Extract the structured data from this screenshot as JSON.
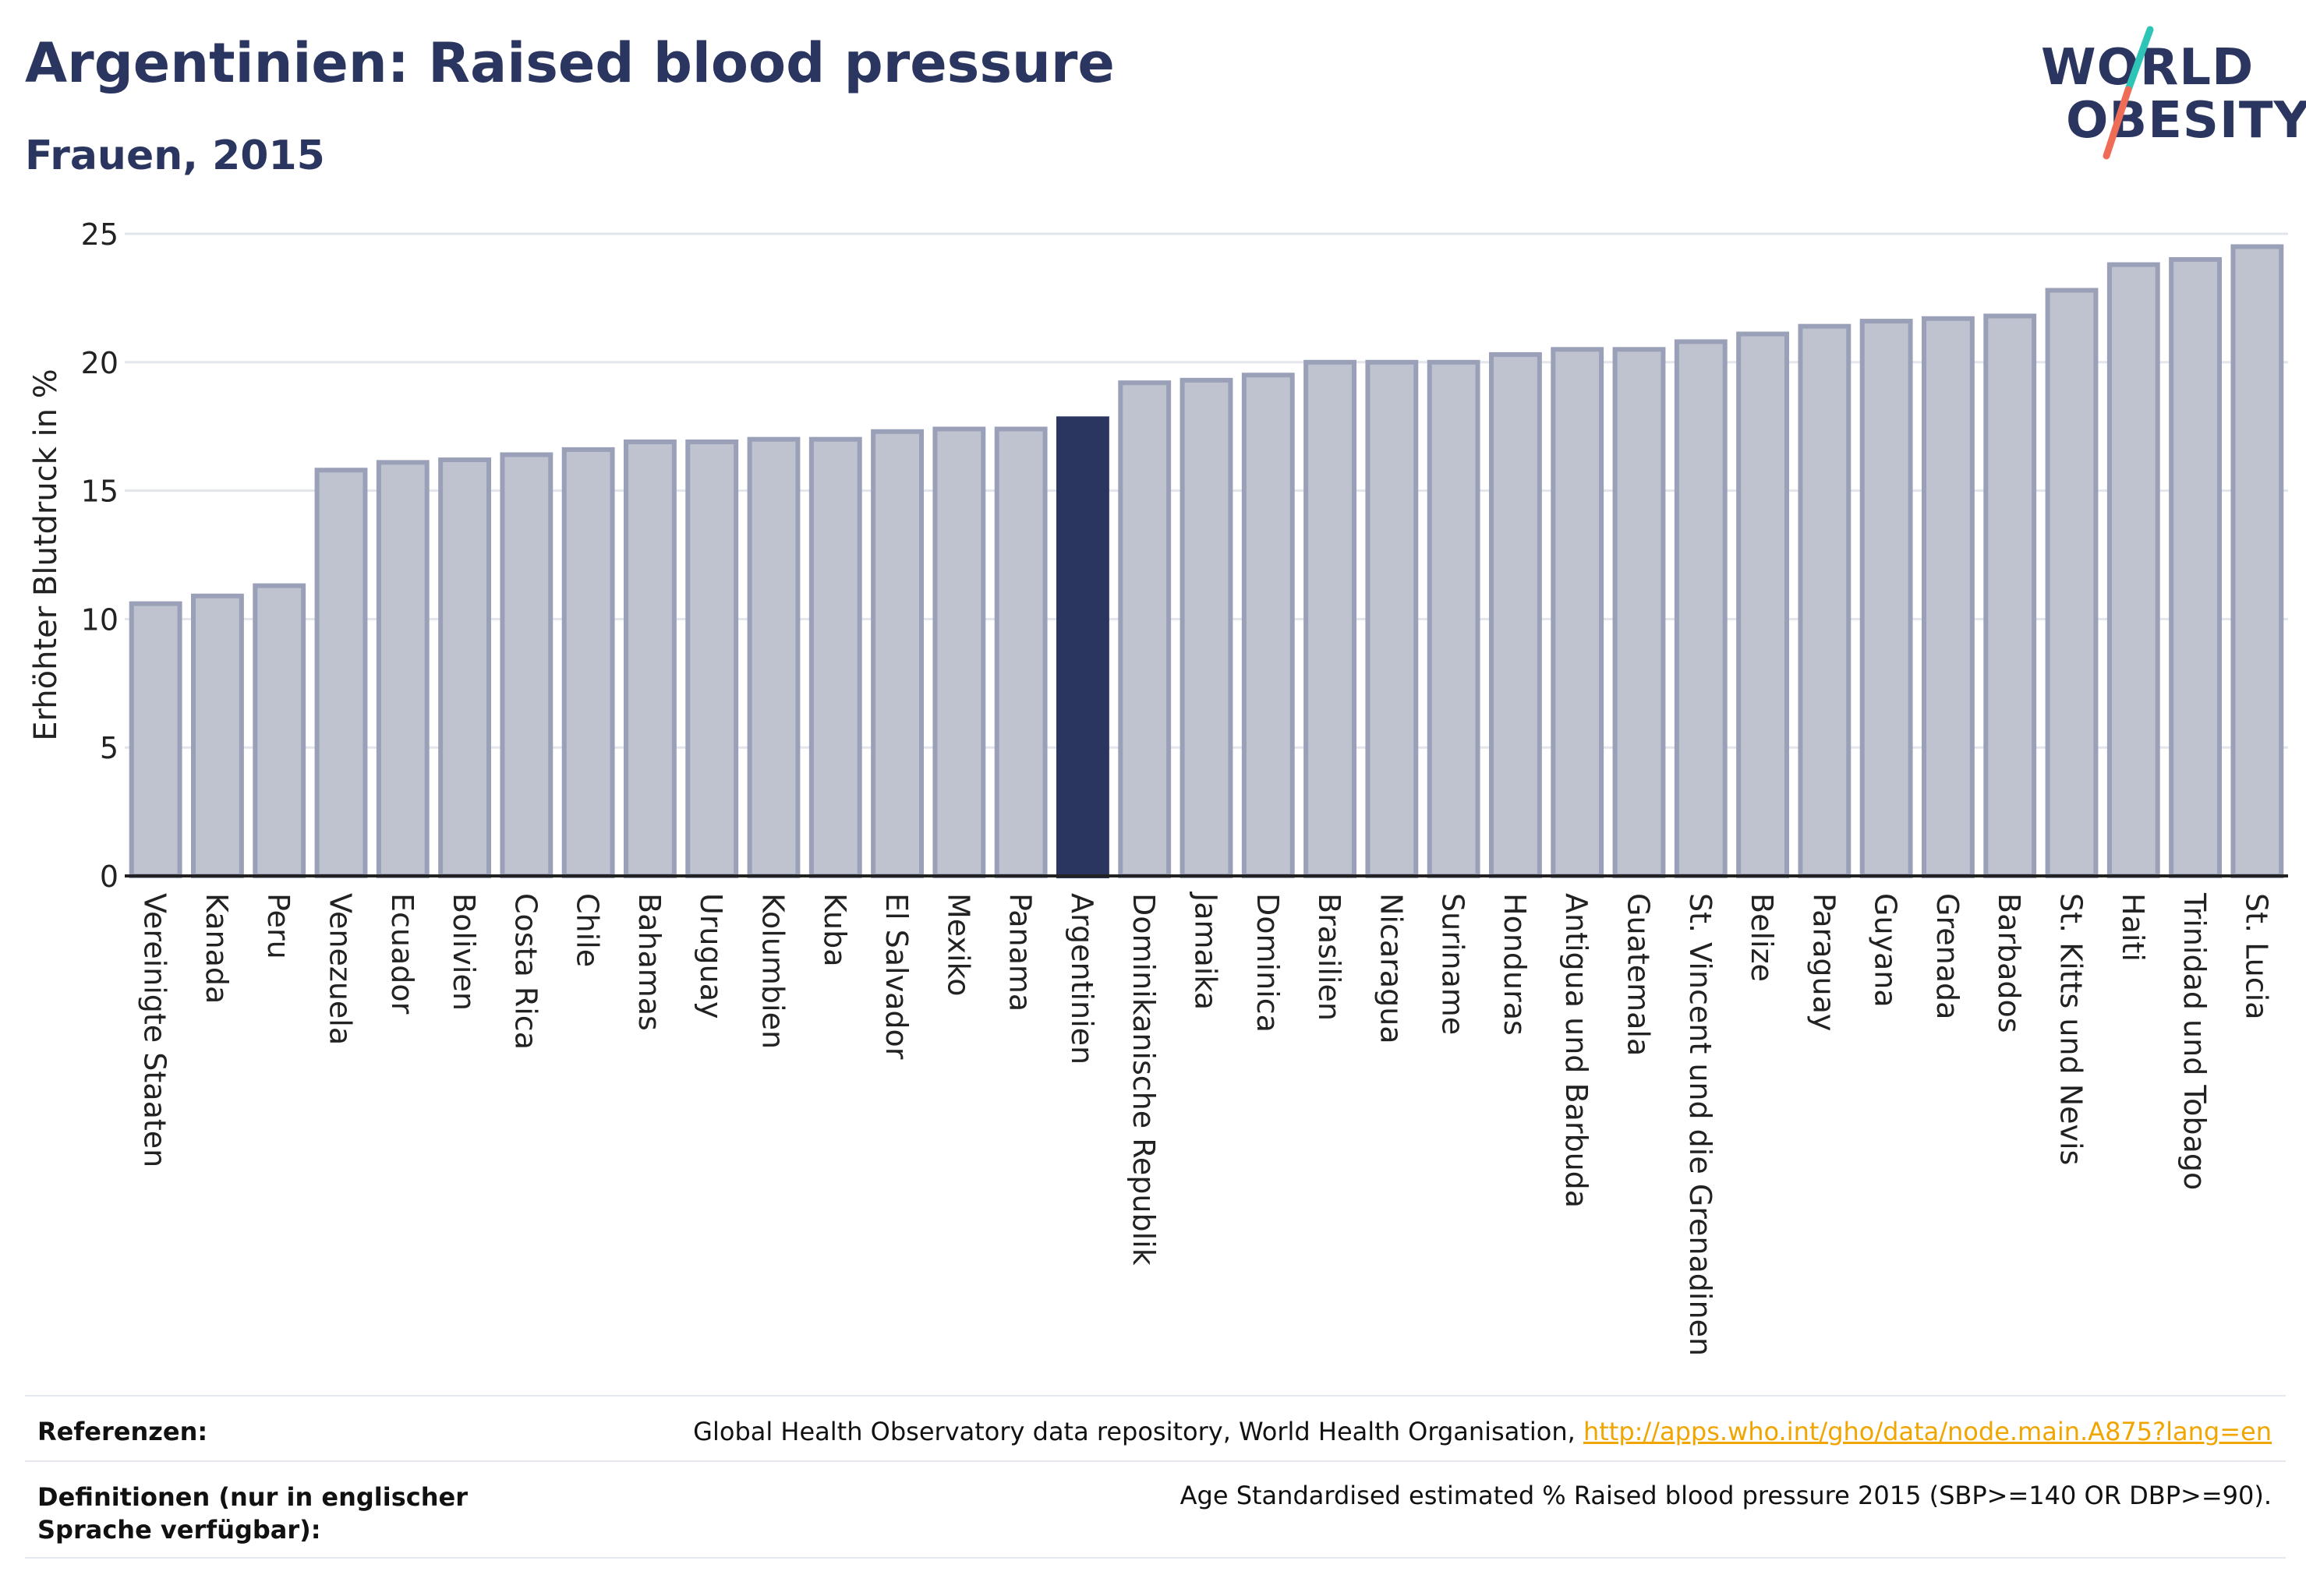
{
  "title": "Argentinien: Raised blood pressure",
  "subtitle": "Frauen, 2015",
  "logo": {
    "line1": "WORLD",
    "line2": "OBESITY",
    "accent_teal": "#2ec4b6",
    "accent_coral": "#ef6c57"
  },
  "colors": {
    "bar": "#bfc3d0",
    "bar_border": "#9aa0b8",
    "highlight": "#2b3660",
    "grid": "#e3e5ec",
    "axis": "#222222"
  },
  "chart_data": {
    "type": "bar",
    "title": "Argentinien: Raised blood pressure",
    "subtitle": "Frauen, 2015",
    "xlabel": "",
    "ylabel": "Erhöhter Blutdruck in %",
    "ylim": [
      0,
      25
    ],
    "yticks": [
      0,
      5,
      10,
      15,
      20,
      25
    ],
    "grid": true,
    "highlight": "Argentinien",
    "categories": [
      "Vereinigte Staaten",
      "Kanada",
      "Peru",
      "Venezuela",
      "Ecuador",
      "Bolivien",
      "Costa Rica",
      "Chile",
      "Bahamas",
      "Uruguay",
      "Kolumbien",
      "Kuba",
      "El Salvador",
      "Mexiko",
      "Panama",
      "Argentinien",
      "Dominikanische Republik",
      "Jamaika",
      "Dominica",
      "Brasilien",
      "Nicaragua",
      "Suriname",
      "Honduras",
      "Antigua und Barbuda",
      "Guatemala",
      "St. Vincent und die Grenadinen",
      "Belize",
      "Paraguay",
      "Guyana",
      "Grenada",
      "Barbados",
      "St. Kitts und Nevis",
      "Haiti",
      "Trinidad und Tobago",
      "St. Lucia"
    ],
    "values": [
      10.6,
      10.9,
      11.3,
      15.8,
      16.1,
      16.2,
      16.4,
      16.6,
      16.9,
      16.9,
      17.0,
      17.0,
      17.3,
      17.4,
      17.4,
      17.8,
      19.2,
      19.3,
      19.5,
      20.0,
      20.0,
      20.0,
      20.3,
      20.5,
      20.5,
      20.8,
      21.1,
      21.4,
      21.6,
      21.7,
      21.8,
      22.8,
      23.8,
      24.0,
      24.5
    ]
  },
  "footer": {
    "ref_label": "Referenzen:",
    "ref_text": "Global Health Observatory data repository, World Health Organisation, ",
    "ref_link": "http://apps.who.int/gho/data/node.main.A875?lang=en",
    "def_label": "Definitionen (nur in englischer Sprache verfügbar):",
    "def_text": "Age Standardised estimated % Raised blood pressure 2015 (SBP>=140 OR DBP>=90)."
  }
}
